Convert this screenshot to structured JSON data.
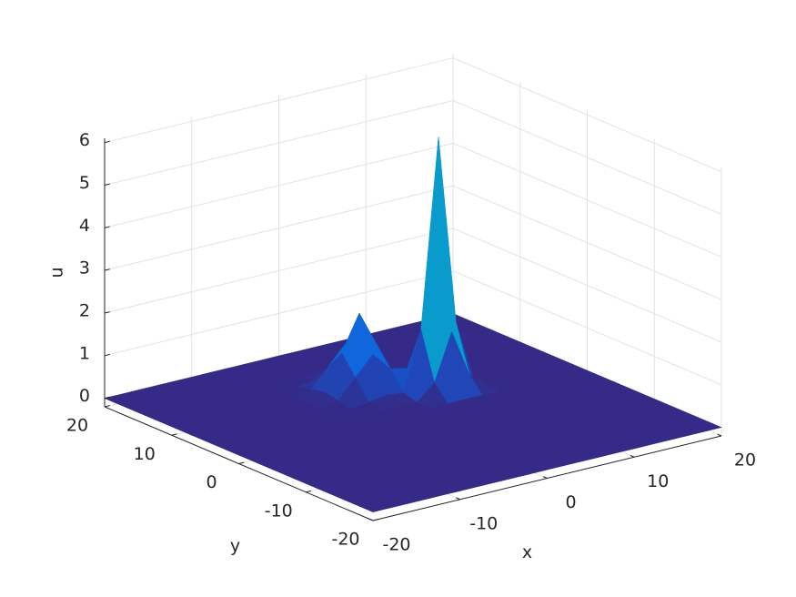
{
  "chart_data": {
    "type": "surface",
    "xlabel": "x",
    "ylabel": "y",
    "zlabel": "u",
    "x": [
      -20,
      -18,
      -16,
      -14,
      -12,
      -10,
      -8,
      -6,
      -4,
      -2,
      0,
      2,
      4,
      6,
      8,
      10,
      12,
      14,
      16,
      18,
      20
    ],
    "y": [
      -20,
      -18,
      -16,
      -14,
      -12,
      -10,
      -8,
      -6,
      -4,
      -2,
      0,
      2,
      4,
      6,
      8,
      10,
      12,
      14,
      16,
      18,
      20
    ],
    "z": [
      [
        0,
        0,
        0,
        0,
        0,
        0,
        0,
        0,
        0,
        0,
        0,
        0,
        0,
        0,
        0,
        0,
        0,
        0,
        0,
        0,
        0
      ],
      [
        0,
        0,
        0,
        0,
        0,
        0,
        0,
        0,
        0,
        0,
        0,
        0,
        0,
        0,
        0,
        0,
        0,
        0,
        0,
        0,
        0
      ],
      [
        0,
        0,
        0,
        0,
        0,
        0,
        0,
        0,
        0,
        0,
        0,
        0,
        0,
        0,
        0,
        0,
        0,
        0,
        0,
        0,
        0
      ],
      [
        0,
        0,
        0,
        0,
        0,
        0,
        0,
        0,
        0,
        0,
        0,
        0,
        0,
        0,
        0,
        0,
        0,
        0,
        0,
        0,
        0
      ],
      [
        0,
        0,
        0,
        0,
        0,
        0,
        0,
        0,
        0,
        0,
        0,
        0,
        0,
        0,
        0,
        0,
        0,
        0,
        0,
        0,
        0
      ],
      [
        0,
        0,
        0,
        0,
        0,
        0,
        0,
        0,
        0,
        0,
        0,
        0,
        0,
        0,
        0,
        0,
        0,
        0,
        0,
        0,
        0
      ],
      [
        0,
        0,
        0,
        0,
        0,
        0,
        0,
        0,
        0,
        0,
        0,
        0,
        0,
        0,
        0,
        0,
        0,
        0,
        0,
        0,
        0
      ],
      [
        0,
        0,
        0,
        0,
        0,
        0,
        0,
        0,
        0,
        0,
        0,
        0,
        0,
        0,
        0,
        0,
        0,
        0,
        0,
        0,
        0
      ],
      [
        0,
        0,
        0,
        0,
        0,
        0,
        0,
        0,
        0,
        0,
        0,
        0,
        0,
        0,
        0,
        0,
        0,
        0,
        0,
        0,
        0
      ],
      [
        0,
        0,
        0,
        0,
        0,
        0,
        0,
        0,
        0,
        0,
        0,
        0,
        0,
        0,
        0,
        0,
        0,
        0,
        0,
        0,
        0
      ],
      [
        0,
        0,
        0,
        0,
        0,
        0,
        0,
        0,
        0,
        0,
        0,
        0,
        0.01,
        0.02,
        0.01,
        0,
        0,
        0,
        0,
        0,
        0
      ],
      [
        0,
        0,
        0,
        0,
        0,
        0,
        0,
        0,
        0,
        0,
        0.01,
        0.01,
        0.37,
        1.47,
        0.37,
        0.01,
        0,
        0,
        0,
        0,
        0
      ],
      [
        0,
        0,
        0,
        0,
        0,
        0,
        0,
        0,
        0.01,
        0.08,
        0.15,
        0.1,
        1.48,
        5.9,
        1.47,
        0.02,
        0,
        0,
        0,
        0,
        0
      ],
      [
        0,
        0,
        0,
        0,
        0,
        0,
        0,
        0,
        0.08,
        0.52,
        0.97,
        0.53,
        0.45,
        1.47,
        0.37,
        0.01,
        0,
        0,
        0,
        0,
        0
      ],
      [
        0,
        0,
        0,
        0,
        0,
        0,
        0,
        0.01,
        0.15,
        0.97,
        1.8,
        0.97,
        0.16,
        0.03,
        0.01,
        0,
        0,
        0,
        0,
        0,
        0
      ],
      [
        0,
        0,
        0,
        0,
        0,
        0,
        0,
        0,
        0.08,
        0.52,
        0.97,
        0.52,
        0.08,
        0,
        0,
        0,
        0,
        0,
        0,
        0,
        0
      ],
      [
        0,
        0,
        0,
        0,
        0,
        0,
        0,
        0,
        0.01,
        0.08,
        0.15,
        0.08,
        0.01,
        0,
        0,
        0,
        0,
        0,
        0,
        0,
        0
      ],
      [
        0,
        0,
        0,
        0,
        0,
        0,
        0,
        0,
        0,
        0,
        0.01,
        0,
        0,
        0,
        0,
        0,
        0,
        0,
        0,
        0,
        0
      ],
      [
        0,
        0,
        0,
        0,
        0,
        0,
        0,
        0,
        0,
        0,
        0,
        0,
        0,
        0,
        0,
        0,
        0,
        0,
        0,
        0,
        0
      ],
      [
        0,
        0,
        0,
        0,
        0,
        0,
        0,
        0,
        0,
        0,
        0,
        0,
        0,
        0,
        0,
        0,
        0,
        0,
        0,
        0,
        0
      ],
      [
        0,
        0,
        0,
        0,
        0,
        0,
        0,
        0,
        0,
        0,
        0,
        0,
        0,
        0,
        0,
        0,
        0,
        0,
        0,
        0,
        0
      ]
    ],
    "xlim": [
      -20,
      20
    ],
    "ylim": [
      -20,
      20
    ],
    "zlim": [
      -0.2,
      6.1
    ],
    "xticks": [
      -20,
      -10,
      0,
      10,
      20
    ],
    "yticks": [
      -20,
      -10,
      0,
      10,
      20
    ],
    "zticks": [
      0,
      1,
      2,
      3,
      4,
      5,
      6
    ],
    "grid": true,
    "colormap": [
      "#352a87",
      "#0f5cdd",
      "#1481d6",
      "#06a4ca",
      "#2eb7a4",
      "#87bf77",
      "#d1bb59",
      "#f9fb0e"
    ]
  }
}
